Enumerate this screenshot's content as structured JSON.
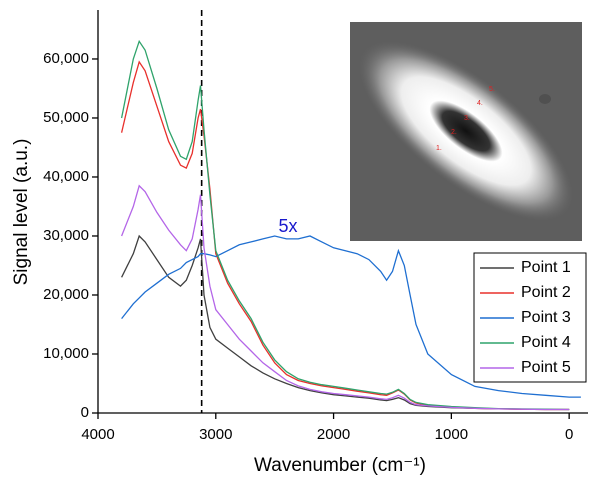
{
  "chart_data": {
    "type": "line",
    "x_label": "Wavenumber (cm⁻¹)",
    "y_label": "Signal level (a.u.)",
    "xlim": [
      4000,
      -160
    ],
    "ylim": [
      0,
      68300
    ],
    "xticks": [
      4000,
      3000,
      2000,
      1000,
      0
    ],
    "yticks": [
      0,
      {
        "value": 10000,
        "label": "10,000"
      },
      {
        "value": 20000,
        "label": "20,000"
      },
      {
        "value": 30000,
        "label": "30,000"
      },
      {
        "value": 40000,
        "label": "40,000"
      },
      {
        "value": 50000,
        "label": "50,000"
      },
      {
        "value": 60000,
        "label": "60,000"
      }
    ],
    "reference_line_x": 3120,
    "annotation": "5x",
    "legend_position": "lower right",
    "inset_labels": [
      "1.",
      "2.",
      "3.",
      "4.",
      "5."
    ],
    "x": [
      3800,
      3700,
      3650,
      3600,
      3500,
      3400,
      3300,
      3250,
      3200,
      3150,
      3130,
      3100,
      3050,
      3000,
      2900,
      2800,
      2700,
      2600,
      2500,
      2400,
      2300,
      2200,
      2100,
      2000,
      1900,
      1800,
      1700,
      1600,
      1550,
      1500,
      1450,
      1400,
      1350,
      1300,
      1200,
      1000,
      800,
      600,
      400,
      200,
      0,
      -100
    ],
    "series": [
      {
        "name": "Point 1",
        "color": "#404040",
        "values": [
          23000,
          27000,
          30000,
          29000,
          26000,
          23000,
          21500,
          22500,
          25000,
          28000,
          29500,
          20000,
          14500,
          12500,
          11000,
          9500,
          8000,
          6800,
          5800,
          5000,
          4300,
          3800,
          3400,
          3100,
          2900,
          2700,
          2500,
          2200,
          2100,
          2300,
          2600,
          2200,
          1600,
          1300,
          1100,
          900,
          800,
          700,
          650,
          600,
          600,
          null
        ]
      },
      {
        "name": "Point 2",
        "color": "#e8302c",
        "values": [
          47500,
          56000,
          59500,
          58000,
          52000,
          46000,
          42000,
          41500,
          44000,
          50000,
          51500,
          47000,
          38000,
          27000,
          22000,
          18500,
          15500,
          11500,
          8500,
          6500,
          5500,
          5000,
          4600,
          4300,
          4000,
          3700,
          3400,
          3100,
          3000,
          3400,
          3900,
          3200,
          2200,
          1700,
          1300,
          1000,
          800,
          700,
          650,
          600,
          600,
          null
        ]
      },
      {
        "name": "Point 3",
        "color": "#1f6fd1",
        "values": [
          16000,
          18500,
          19500,
          20500,
          22000,
          23500,
          24500,
          25500,
          26000,
          26500,
          27000,
          27000,
          26800,
          26500,
          27500,
          28500,
          29000,
          29500,
          30000,
          29500,
          29500,
          30000,
          29000,
          28000,
          27500,
          27000,
          26000,
          24000,
          22500,
          24000,
          27500,
          25000,
          20000,
          15000,
          10000,
          6500,
          4500,
          3800,
          3300,
          3000,
          2700,
          2700
        ]
      },
      {
        "name": "Point 4",
        "color": "#2fa36b",
        "values": [
          50000,
          60000,
          63000,
          61500,
          55000,
          48000,
          43500,
          43000,
          46000,
          53000,
          55500,
          48000,
          37000,
          27500,
          22500,
          19000,
          16000,
          12000,
          9000,
          7000,
          5800,
          5200,
          4800,
          4500,
          4200,
          3900,
          3600,
          3300,
          3200,
          3500,
          4000,
          3300,
          2300,
          1800,
          1400,
          1100,
          900,
          750,
          700,
          650,
          600,
          null
        ]
      },
      {
        "name": "Point 5",
        "color": "#b466e8",
        "values": [
          30000,
          35000,
          38500,
          37500,
          34000,
          31000,
          28500,
          27500,
          29500,
          34500,
          37000,
          28000,
          21500,
          17500,
          15000,
          12500,
          10500,
          8500,
          7000,
          5500,
          4600,
          4000,
          3600,
          3300,
          3100,
          2900,
          2700,
          2400,
          2300,
          2600,
          3000,
          2500,
          1800,
          1400,
          1200,
          950,
          800,
          700,
          650,
          600,
          600,
          null
        ]
      }
    ]
  }
}
